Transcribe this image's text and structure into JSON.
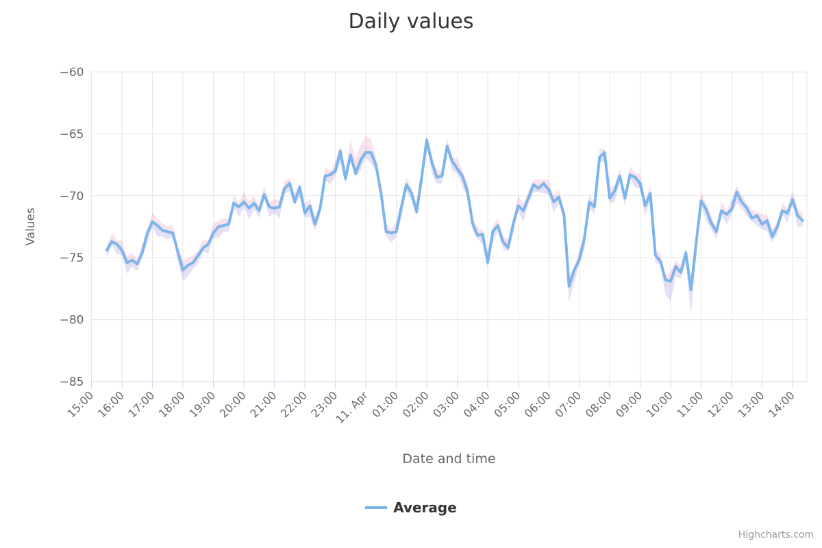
{
  "chart": {
    "credits": "Highcharts.com",
    "colors": {
      "series_line": "#7cb5ec",
      "band_above": "rgba(231,118,169,0.22)",
      "band_below": "rgba(134,113,208,0.22)",
      "gridline": "#e6e6e6",
      "axis_line": "#ccd6eb",
      "tick_label": "#666666",
      "title_text": "#333333",
      "credits_text": "#999999"
    }
  },
  "chart_data": {
    "type": "line",
    "title": "Daily values",
    "xlabel": "Date and time",
    "ylabel": "Values",
    "ylim": [
      -85,
      -60
    ],
    "grid": true,
    "legend_position": "bottom-center",
    "y_ticks": [
      -60,
      -65,
      -70,
      -75,
      -80,
      -85
    ],
    "y_tick_labels": [
      "−60",
      "−65",
      "−70",
      "−75",
      "−80",
      "−85"
    ],
    "x_tick_labels": [
      "15:00",
      "16:00",
      "17:00",
      "18:00",
      "19:00",
      "20:00",
      "21:00",
      "22:00",
      "23:00",
      "11. Apr",
      "01:00",
      "02:00",
      "03:00",
      "04:00",
      "05:00",
      "06:00",
      "07:00",
      "08:00",
      "09:00",
      "10:00",
      "11:00",
      "12:00",
      "13:00",
      "14:00"
    ],
    "series": [
      {
        "name": "Average",
        "type": "line",
        "color": "#7cb5ec",
        "start_time": "15:30",
        "end_time": "14:20",
        "interval_minutes": 10,
        "values": [
          -74.4,
          -73.7,
          -73.9,
          -74.4,
          -75.4,
          -75.2,
          -75.5,
          -74.6,
          -73.0,
          -72.1,
          -72.4,
          -72.8,
          -72.9,
          -73.0,
          -74.5,
          -76.0,
          -75.6,
          -75.4,
          -74.8,
          -74.2,
          -73.9,
          -73.0,
          -72.5,
          -72.4,
          -72.3,
          -70.6,
          -70.9,
          -70.5,
          -71.0,
          -70.6,
          -71.2,
          -69.9,
          -70.9,
          -71.0,
          -70.9,
          -69.4,
          -69.0,
          -70.5,
          -69.3,
          -71.4,
          -70.8,
          -72.3,
          -71.0,
          -68.4,
          -68.3,
          -68.0,
          -66.4,
          -68.6,
          -66.7,
          -68.2,
          -67.1,
          -66.5,
          -66.5,
          -67.5,
          -69.8,
          -72.9,
          -73.0,
          -72.9,
          -70.9,
          -69.1,
          -69.8,
          -71.3,
          -68.5,
          -65.5,
          -67.3,
          -68.5,
          -68.4,
          -66.0,
          -67.2,
          -67.8,
          -68.4,
          -69.6,
          -72.2,
          -73.2,
          -73.1,
          -75.4,
          -72.9,
          -72.4,
          -73.7,
          -74.2,
          -72.3,
          -70.8,
          -71.2,
          -70.2,
          -69.1,
          -69.4,
          -69.0,
          -69.5,
          -70.5,
          -70.1,
          -71.5,
          -77.3,
          -76.0,
          -75.2,
          -73.5,
          -70.5,
          -70.9,
          -66.9,
          -66.5,
          -70.2,
          -69.6,
          -68.4,
          -70.2,
          -68.3,
          -68.5,
          -69.0,
          -70.8,
          -69.8,
          -74.8,
          -75.3,
          -76.8,
          -76.9,
          -75.7,
          -76.2,
          -74.6,
          -77.6,
          -73.9,
          -70.4,
          -71.1,
          -72.2,
          -72.9,
          -71.2,
          -71.5,
          -71.1,
          -69.7,
          -70.5,
          -71.0,
          -71.8,
          -71.6,
          -72.3,
          -72.0,
          -73.3,
          -72.5,
          -71.2,
          -71.4,
          -70.3,
          -71.6,
          -72.0
        ]
      },
      {
        "type": "arearange",
        "description": "pink band above average, lavender band below average",
        "band_up_offsets": [
          0.4,
          0.7,
          0.3,
          0.8,
          0.5,
          0.6,
          0.4,
          0.7,
          0.3,
          0.8,
          0.5,
          0.6,
          0.4,
          0.7,
          0.3,
          0.8,
          0.5,
          0.6,
          0.4,
          0.7,
          0.3,
          0.8,
          0.5,
          0.6,
          0.4,
          0.7,
          0.3,
          0.8,
          0.5,
          0.6,
          0.4,
          0.7,
          0.3,
          0.8,
          0.5,
          0.6,
          0.4,
          0.7,
          0.3,
          0.8,
          0.5,
          0.6,
          0.4,
          0.7,
          0.3,
          0.8,
          0.5,
          0.6,
          1.2,
          1.1,
          1.2,
          1.3,
          1.1,
          0.6,
          0.4,
          0.7,
          0.3,
          0.8,
          0.5,
          0.6,
          0.4,
          0.7,
          0.3,
          0.4,
          0.5,
          0.6,
          0.4,
          0.7,
          0.3,
          0.8,
          0.5,
          0.6,
          0.4,
          0.7,
          0.3,
          0.8,
          0.5,
          0.6,
          0.4,
          0.7,
          0.3,
          0.8,
          0.5,
          0.6,
          0.4,
          0.7,
          0.3,
          0.8,
          0.5,
          0.6,
          0.4,
          0.7,
          0.3,
          0.8,
          0.5,
          0.6,
          0.4,
          0.7,
          0.3,
          0.8,
          0.5,
          0.6,
          0.4,
          0.7,
          0.3,
          0.8,
          0.5,
          0.6,
          0.4,
          0.7,
          0.3,
          0.8,
          0.5,
          0.6,
          0.4,
          0.7,
          0.3,
          0.8,
          0.5,
          0.6,
          0.4,
          0.7,
          0.3,
          0.8,
          0.5,
          0.6,
          0.4,
          0.7,
          0.3,
          0.8,
          0.5,
          0.6,
          0.4,
          0.7,
          0.3,
          0.8,
          0.5,
          0.6
        ],
        "band_down_offsets": [
          0.6,
          0.3,
          0.8,
          0.4,
          0.9,
          0.5,
          0.6,
          0.3,
          0.8,
          0.4,
          0.9,
          0.5,
          0.6,
          0.3,
          0.8,
          0.9,
          0.9,
          0.5,
          0.6,
          0.3,
          0.8,
          0.4,
          0.9,
          0.5,
          0.6,
          0.3,
          0.8,
          0.4,
          0.9,
          0.5,
          0.6,
          0.3,
          0.8,
          0.4,
          0.9,
          0.5,
          0.6,
          0.3,
          0.8,
          0.4,
          0.9,
          0.5,
          0.6,
          0.3,
          0.8,
          0.4,
          0.9,
          0.5,
          0.6,
          0.3,
          0.8,
          0.4,
          0.9,
          0.5,
          0.6,
          0.3,
          0.8,
          0.4,
          0.9,
          0.5,
          0.6,
          0.3,
          0.8,
          0.4,
          0.9,
          0.5,
          0.6,
          0.3,
          0.8,
          0.4,
          0.9,
          0.5,
          0.6,
          0.3,
          0.8,
          0.4,
          0.9,
          0.5,
          0.6,
          0.3,
          0.8,
          0.4,
          0.9,
          0.5,
          0.6,
          0.3,
          0.8,
          0.4,
          0.9,
          0.5,
          0.6,
          1.3,
          1.0,
          0.4,
          0.9,
          0.5,
          0.6,
          0.3,
          0.8,
          0.4,
          0.9,
          0.5,
          0.6,
          0.3,
          0.8,
          0.4,
          0.9,
          0.5,
          0.6,
          0.3,
          1.2,
          1.6,
          0.8,
          0.5,
          0.7,
          2.0,
          1.2,
          0.4,
          0.9,
          0.5,
          0.6,
          0.3,
          0.8,
          0.4,
          0.9,
          0.5,
          0.6,
          0.3,
          0.8,
          0.4,
          0.9,
          0.5,
          0.6,
          0.3,
          0.8,
          0.4,
          0.9,
          0.5
        ]
      }
    ]
  }
}
